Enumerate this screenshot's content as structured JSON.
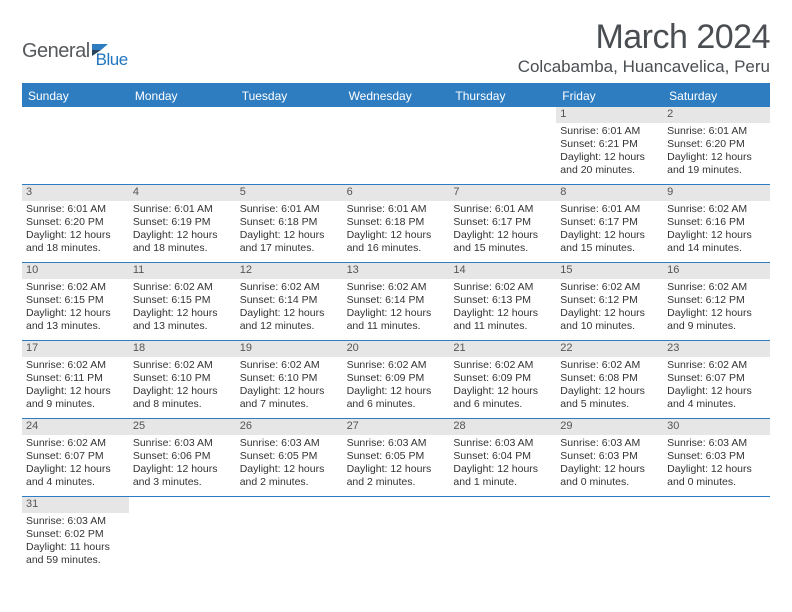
{
  "logo": {
    "text1": "General",
    "text2": "Blue"
  },
  "title": "March 2024",
  "location": "Colcabamba, Huancavelica, Peru",
  "headers": [
    "Sunday",
    "Monday",
    "Tuesday",
    "Wednesday",
    "Thursday",
    "Friday",
    "Saturday"
  ],
  "colors": {
    "header_bg": "#2f7dc1",
    "header_fg": "#ffffff",
    "daynum_bg": "#e6e6e6",
    "rule": "#2f7dc1",
    "logo_dark": "#56595c",
    "logo_blue": "#2176c0"
  },
  "weeks": [
    [
      null,
      null,
      null,
      null,
      null,
      {
        "n": "1",
        "rise": "6:01 AM",
        "set": "6:21 PM",
        "dl": "12 hours and 20 minutes."
      },
      {
        "n": "2",
        "rise": "6:01 AM",
        "set": "6:20 PM",
        "dl": "12 hours and 19 minutes."
      }
    ],
    [
      {
        "n": "3",
        "rise": "6:01 AM",
        "set": "6:20 PM",
        "dl": "12 hours and 18 minutes."
      },
      {
        "n": "4",
        "rise": "6:01 AM",
        "set": "6:19 PM",
        "dl": "12 hours and 18 minutes."
      },
      {
        "n": "5",
        "rise": "6:01 AM",
        "set": "6:18 PM",
        "dl": "12 hours and 17 minutes."
      },
      {
        "n": "6",
        "rise": "6:01 AM",
        "set": "6:18 PM",
        "dl": "12 hours and 16 minutes."
      },
      {
        "n": "7",
        "rise": "6:01 AM",
        "set": "6:17 PM",
        "dl": "12 hours and 15 minutes."
      },
      {
        "n": "8",
        "rise": "6:01 AM",
        "set": "6:17 PM",
        "dl": "12 hours and 15 minutes."
      },
      {
        "n": "9",
        "rise": "6:02 AM",
        "set": "6:16 PM",
        "dl": "12 hours and 14 minutes."
      }
    ],
    [
      {
        "n": "10",
        "rise": "6:02 AM",
        "set": "6:15 PM",
        "dl": "12 hours and 13 minutes."
      },
      {
        "n": "11",
        "rise": "6:02 AM",
        "set": "6:15 PM",
        "dl": "12 hours and 13 minutes."
      },
      {
        "n": "12",
        "rise": "6:02 AM",
        "set": "6:14 PM",
        "dl": "12 hours and 12 minutes."
      },
      {
        "n": "13",
        "rise": "6:02 AM",
        "set": "6:14 PM",
        "dl": "12 hours and 11 minutes."
      },
      {
        "n": "14",
        "rise": "6:02 AM",
        "set": "6:13 PM",
        "dl": "12 hours and 11 minutes."
      },
      {
        "n": "15",
        "rise": "6:02 AM",
        "set": "6:12 PM",
        "dl": "12 hours and 10 minutes."
      },
      {
        "n": "16",
        "rise": "6:02 AM",
        "set": "6:12 PM",
        "dl": "12 hours and 9 minutes."
      }
    ],
    [
      {
        "n": "17",
        "rise": "6:02 AM",
        "set": "6:11 PM",
        "dl": "12 hours and 9 minutes."
      },
      {
        "n": "18",
        "rise": "6:02 AM",
        "set": "6:10 PM",
        "dl": "12 hours and 8 minutes."
      },
      {
        "n": "19",
        "rise": "6:02 AM",
        "set": "6:10 PM",
        "dl": "12 hours and 7 minutes."
      },
      {
        "n": "20",
        "rise": "6:02 AM",
        "set": "6:09 PM",
        "dl": "12 hours and 6 minutes."
      },
      {
        "n": "21",
        "rise": "6:02 AM",
        "set": "6:09 PM",
        "dl": "12 hours and 6 minutes."
      },
      {
        "n": "22",
        "rise": "6:02 AM",
        "set": "6:08 PM",
        "dl": "12 hours and 5 minutes."
      },
      {
        "n": "23",
        "rise": "6:02 AM",
        "set": "6:07 PM",
        "dl": "12 hours and 4 minutes."
      }
    ],
    [
      {
        "n": "24",
        "rise": "6:02 AM",
        "set": "6:07 PM",
        "dl": "12 hours and 4 minutes."
      },
      {
        "n": "25",
        "rise": "6:03 AM",
        "set": "6:06 PM",
        "dl": "12 hours and 3 minutes."
      },
      {
        "n": "26",
        "rise": "6:03 AM",
        "set": "6:05 PM",
        "dl": "12 hours and 2 minutes."
      },
      {
        "n": "27",
        "rise": "6:03 AM",
        "set": "6:05 PM",
        "dl": "12 hours and 2 minutes."
      },
      {
        "n": "28",
        "rise": "6:03 AM",
        "set": "6:04 PM",
        "dl": "12 hours and 1 minute."
      },
      {
        "n": "29",
        "rise": "6:03 AM",
        "set": "6:03 PM",
        "dl": "12 hours and 0 minutes."
      },
      {
        "n": "30",
        "rise": "6:03 AM",
        "set": "6:03 PM",
        "dl": "12 hours and 0 minutes."
      }
    ],
    [
      {
        "n": "31",
        "rise": "6:03 AM",
        "set": "6:02 PM",
        "dl": "11 hours and 59 minutes."
      },
      null,
      null,
      null,
      null,
      null,
      null
    ]
  ],
  "labels": {
    "sunrise": "Sunrise:",
    "sunset": "Sunset:",
    "daylight": "Daylight:"
  }
}
